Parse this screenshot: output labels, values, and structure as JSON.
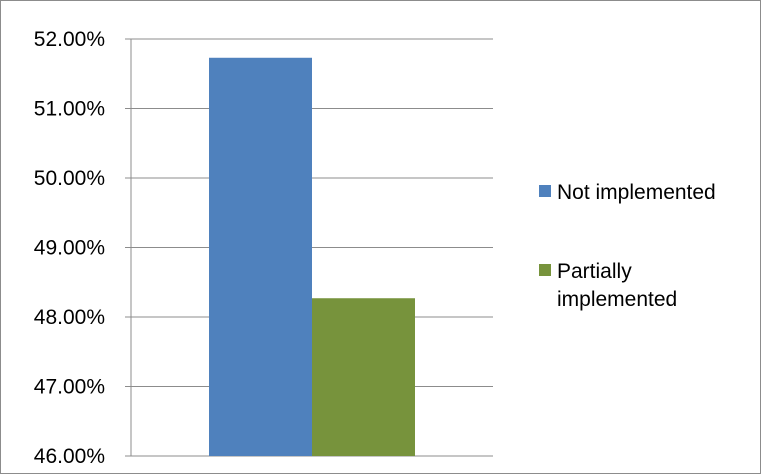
{
  "chart_data": {
    "type": "bar",
    "categories": [
      ""
    ],
    "series": [
      {
        "name": "Not implemented",
        "values": [
          51.73
        ],
        "color": "#4f81bd"
      },
      {
        "name": "Partially implemented",
        "values": [
          48.27
        ],
        "color": "#77933c"
      }
    ],
    "title": "",
    "xlabel": "",
    "ylabel": "",
    "ylim": [
      46,
      52
    ],
    "yticks": [
      "46.00%",
      "47.00%",
      "48.00%",
      "49.00%",
      "50.00%",
      "51.00%",
      "52.00%"
    ],
    "grid": true,
    "legend_position": "right",
    "legend": [
      {
        "label_lines": [
          "Not implemented"
        ],
        "color": "#4f81bd"
      },
      {
        "label_lines": [
          "Partially",
          "implemented"
        ],
        "color": "#77933c"
      }
    ]
  }
}
